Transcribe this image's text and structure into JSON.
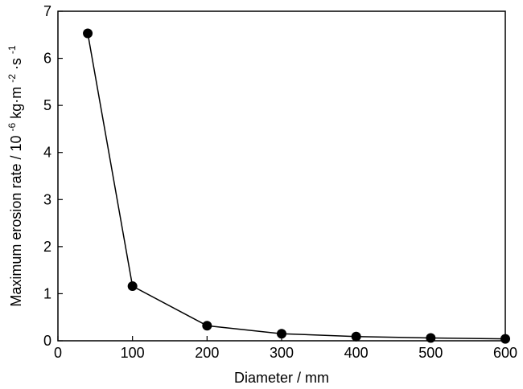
{
  "chart_data": {
    "type": "line",
    "title": "",
    "xlabel": "Diameter / mm",
    "ylabel": {
      "prefix": "Maximum erosion rate / 10",
      "exp1": "-6",
      "mid1": " kg·m",
      "exp2": "-2",
      "mid2": "·s",
      "exp3": "-1"
    },
    "xlim": [
      0,
      600
    ],
    "ylim": [
      0,
      7
    ],
    "xticks": [
      0,
      100,
      200,
      300,
      400,
      500,
      600
    ],
    "yticks": [
      0,
      1,
      2,
      3,
      4,
      5,
      6,
      7
    ],
    "grid": false,
    "series": [
      {
        "x": [
          40,
          100,
          200,
          300,
          400,
          500,
          600
        ],
        "y": [
          6.53,
          1.16,
          0.32,
          0.15,
          0.09,
          0.06,
          0.04
        ]
      }
    ],
    "line_color": "#000000",
    "marker": "circle"
  }
}
